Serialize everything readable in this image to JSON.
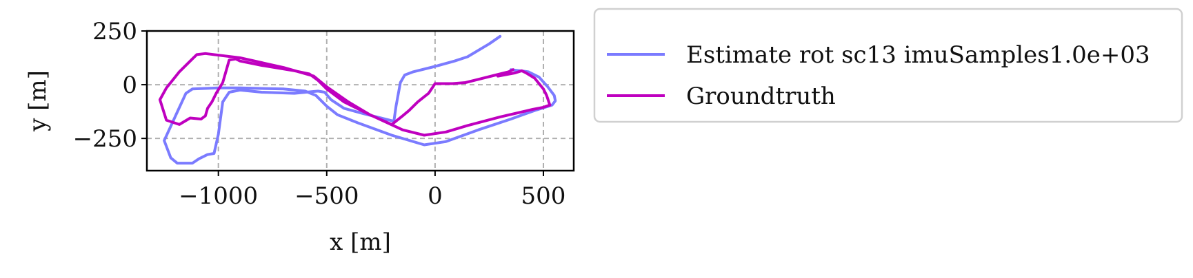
{
  "chart_data": {
    "type": "line",
    "title": "",
    "xlabel": "x [m]",
    "ylabel": "y [m]",
    "xlim": [
      -1330,
      640
    ],
    "ylim": [
      -400,
      250
    ],
    "xticks": [
      {
        "value": -1000,
        "label": "−1000"
      },
      {
        "value": -500,
        "label": "−500"
      },
      {
        "value": 0,
        "label": "0"
      },
      {
        "value": 500,
        "label": "500"
      }
    ],
    "yticks": [
      {
        "value": 250,
        "label": "250"
      },
      {
        "value": 0,
        "label": "0"
      },
      {
        "value": -250,
        "label": "−250"
      }
    ],
    "grid": true,
    "legend_position": "outside-right",
    "series": [
      {
        "name": "Estimate rot sc13 imuSamples1.0e+03",
        "color": "#7b7bff",
        "points": [
          [
            300,
            225
          ],
          [
            250,
            190
          ],
          [
            150,
            130
          ],
          [
            90,
            110
          ],
          [
            0,
            85
          ],
          [
            -100,
            60
          ],
          [
            -140,
            45
          ],
          [
            -160,
            10
          ],
          [
            -180,
            -100
          ],
          [
            -190,
            -170
          ],
          [
            -250,
            -155
          ],
          [
            -330,
            -135
          ],
          [
            -420,
            -110
          ],
          [
            -480,
            -70
          ],
          [
            -510,
            -35
          ],
          [
            -540,
            -30
          ],
          [
            -650,
            -40
          ],
          [
            -800,
            -35
          ],
          [
            -900,
            -25
          ],
          [
            -950,
            -35
          ],
          [
            -980,
            -80
          ],
          [
            -1000,
            -230
          ],
          [
            -1020,
            -320
          ],
          [
            -1050,
            -325
          ],
          [
            -1090,
            -345
          ],
          [
            -1120,
            -365
          ],
          [
            -1190,
            -365
          ],
          [
            -1220,
            -340
          ],
          [
            -1250,
            -260
          ],
          [
            -1200,
            -150
          ],
          [
            -1150,
            -40
          ],
          [
            -1120,
            -20
          ],
          [
            -1000,
            -15
          ],
          [
            -900,
            -15
          ],
          [
            -700,
            -20
          ],
          [
            -600,
            -30
          ],
          [
            -550,
            -50
          ],
          [
            -500,
            -100
          ],
          [
            -450,
            -140
          ],
          [
            -350,
            -180
          ],
          [
            -200,
            -235
          ],
          [
            -50,
            -280
          ],
          [
            50,
            -265
          ],
          [
            200,
            -210
          ],
          [
            350,
            -160
          ],
          [
            460,
            -120
          ],
          [
            540,
            -95
          ],
          [
            555,
            -75
          ],
          [
            550,
            -50
          ],
          [
            520,
            -10
          ],
          [
            480,
            35
          ],
          [
            430,
            60
          ],
          [
            350,
            70
          ]
        ]
      },
      {
        "name": "Groundtruth",
        "color": "#bf00bf",
        "points": [
          [
            360,
            70
          ],
          [
            340,
            60
          ],
          [
            280,
            45
          ],
          [
            200,
            25
          ],
          [
            140,
            10
          ],
          [
            80,
            5
          ],
          [
            0,
            5
          ],
          [
            -10,
            -10
          ],
          [
            -30,
            -40
          ],
          [
            -80,
            -80
          ],
          [
            -120,
            -120
          ],
          [
            -150,
            -145
          ],
          [
            -200,
            -185
          ],
          [
            -300,
            -140
          ],
          [
            -420,
            -80
          ],
          [
            -500,
            -20
          ],
          [
            -540,
            20
          ],
          [
            -580,
            50
          ],
          [
            -650,
            65
          ],
          [
            -800,
            90
          ],
          [
            -900,
            110
          ],
          [
            -920,
            120
          ],
          [
            -950,
            115
          ],
          [
            -960,
            80
          ],
          [
            -980,
            10
          ],
          [
            -1010,
            -40
          ],
          [
            -1030,
            -80
          ],
          [
            -1050,
            -110
          ],
          [
            -1060,
            -145
          ],
          [
            -1080,
            -160
          ],
          [
            -1130,
            -155
          ],
          [
            -1180,
            -185
          ],
          [
            -1240,
            -165
          ],
          [
            -1270,
            -70
          ],
          [
            -1240,
            -15
          ],
          [
            -1180,
            60
          ],
          [
            -1120,
            120
          ],
          [
            -1100,
            140
          ],
          [
            -1060,
            145
          ],
          [
            -900,
            125
          ],
          [
            -700,
            80
          ],
          [
            -560,
            40
          ],
          [
            -500,
            -10
          ],
          [
            -400,
            -80
          ],
          [
            -300,
            -140
          ],
          [
            -150,
            -210
          ],
          [
            -50,
            -235
          ],
          [
            50,
            -220
          ],
          [
            150,
            -190
          ],
          [
            300,
            -150
          ],
          [
            450,
            -115
          ],
          [
            500,
            -105
          ],
          [
            530,
            -95
          ],
          [
            515,
            -50
          ],
          [
            500,
            -20
          ],
          [
            460,
            30
          ],
          [
            420,
            55
          ],
          [
            400,
            65
          ],
          [
            370,
            55
          ],
          [
            290,
            40
          ]
        ]
      }
    ]
  }
}
